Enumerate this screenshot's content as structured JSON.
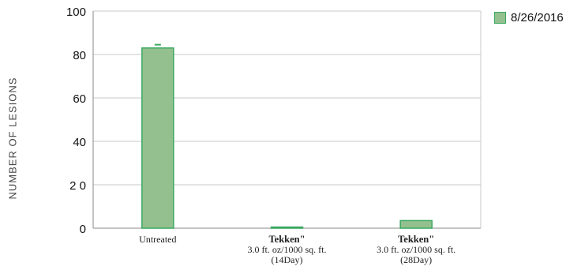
{
  "chart_data": {
    "type": "bar",
    "title": "",
    "xlabel": "",
    "ylabel": "NUMBER OF LESIONS",
    "ylim": [
      0,
      100
    ],
    "yticks": [
      "0",
      "2 0",
      "40",
      "60",
      "80",
      "100"
    ],
    "categories": [
      {
        "name": "Untreated",
        "lines": [
          "Untreated"
        ]
      },
      {
        "name": "Tekken",
        "lines": [
          "Tekken\"",
          "3.0 ft. oz/1000 sq. ft.",
          "(14Day)"
        ]
      },
      {
        "name": "Tekken",
        "lines": [
          "Tekken\"",
          "3.0 ft. oz/1000 sq. ft.",
          "(28Day)"
        ]
      }
    ],
    "series": [
      {
        "name": "8/26/2016",
        "values": [
          83,
          0.5,
          3.5
        ],
        "error": [
          1.5,
          0,
          0
        ]
      }
    ],
    "grid": true,
    "legend_position": "top-right"
  },
  "colors": {
    "bar_fill": "#94c08f",
    "bar_stroke": "#3aa860",
    "grid": "#c8c8c8",
    "axis": "#888888"
  }
}
